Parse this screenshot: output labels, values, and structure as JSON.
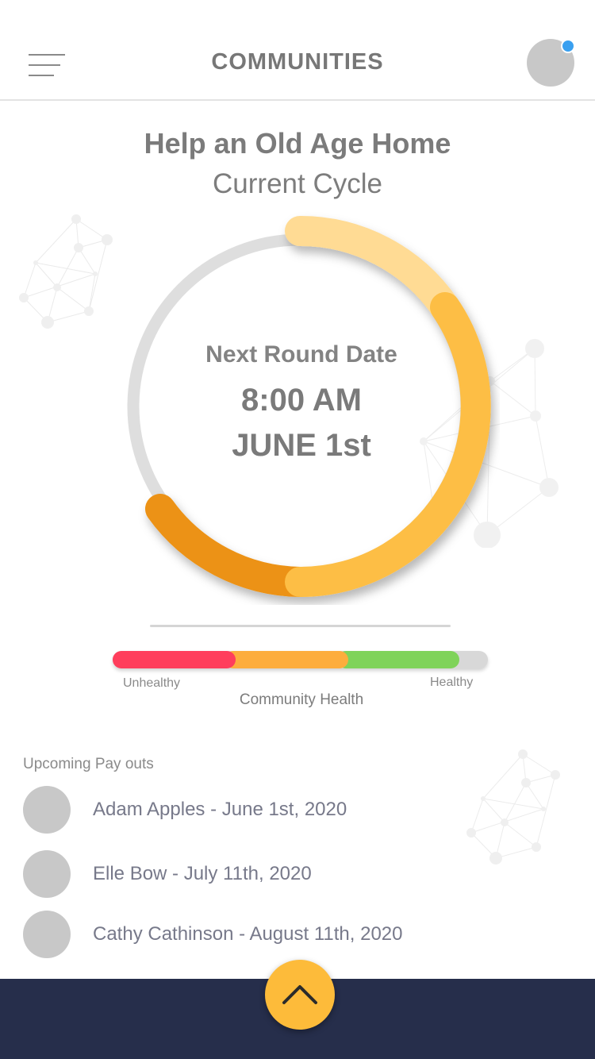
{
  "header": {
    "title": "COMMUNITIES",
    "menu_icon": "hamburger-menu-icon",
    "profile_icon": "avatar",
    "notification_color": "#3aa0f0"
  },
  "community": {
    "name": "Help an Old Age Home",
    "cycle_label": "Current Cycle"
  },
  "next_round": {
    "label": "Next Round Date",
    "time": "8:00 AM",
    "date": "JUNE 1st"
  },
  "health": {
    "title": "Community Health",
    "low_label": "Unhealthy",
    "high_label": "Healthy",
    "colors": [
      "#ff3e5c",
      "#fdad3d",
      "#7fd35a",
      "#d8d8d8"
    ]
  },
  "payouts": {
    "title": "Upcoming Pay outs",
    "items": [
      {
        "text": "Adam Apples - June 1st, 2020"
      },
      {
        "text": "Elle Bow - July 11th, 2020"
      },
      {
        "text": "Cathy Cathinson - August 11th, 2020"
      }
    ]
  },
  "footer": {
    "fab_icon": "chevron-up-icon",
    "bar_color": "#262e4b",
    "fab_color": "#fdbb3a"
  }
}
